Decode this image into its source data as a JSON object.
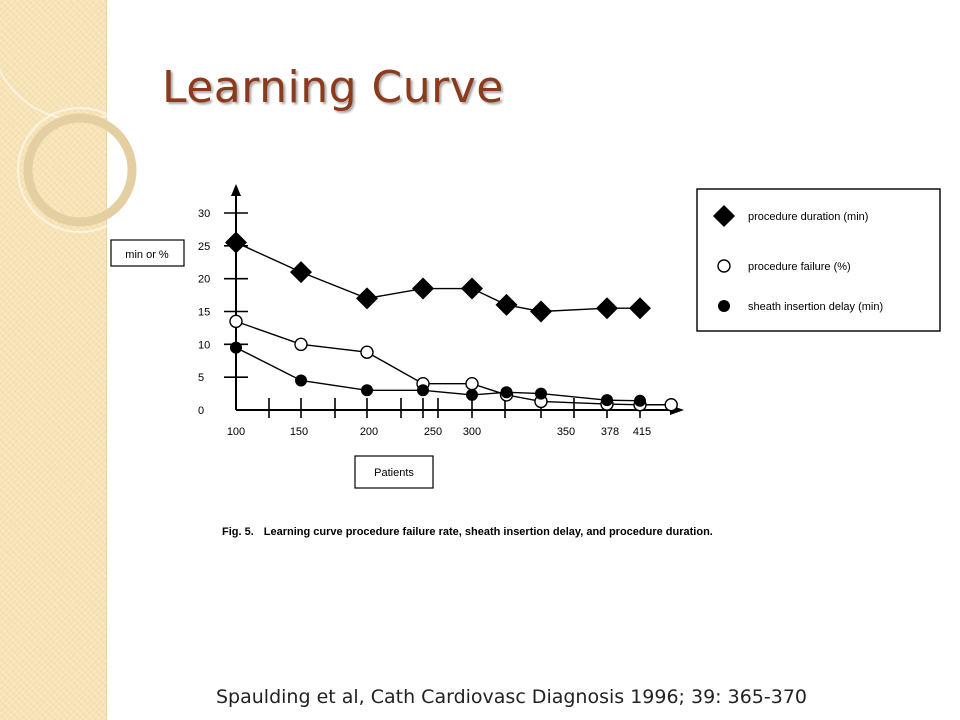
{
  "slide": {
    "title": "Learning Curve",
    "citation": "Spaulding et al, Cath Cardiovasc Diagnosis 1996; 39: 365-370"
  },
  "colors": {
    "title": "#8b3a1c",
    "band": "#f7e3b5",
    "ink": "#000000"
  },
  "chart_data": {
    "type": "line",
    "ylabel": "min or %",
    "xlabel": "Patients",
    "ylim": [
      0,
      30
    ],
    "y_ticks": [
      "0",
      "5",
      "10",
      "15",
      "20",
      "25",
      "30"
    ],
    "x_tick_labels": [
      "100",
      "150",
      "200",
      "250",
      "300",
      "350",
      "378",
      "415"
    ],
    "legend_position": "top-right",
    "caption_label": "Fig. 5.",
    "caption_text": "Learning curve procedure failure rate, sheath insertion delay, and procedure duration.",
    "series": [
      {
        "name": "procedure duration (min)",
        "marker": "diamond",
        "points": [
          [
            100,
            25.5
          ],
          [
            150,
            21
          ],
          [
            200,
            17
          ],
          [
            250,
            18.5
          ],
          [
            300,
            18.5
          ],
          [
            325,
            16
          ],
          [
            350,
            15
          ],
          [
            378,
            15.5
          ],
          [
            415,
            15.5
          ]
        ]
      },
      {
        "name": "procedure failure (%)",
        "marker": "open-circle",
        "points": [
          [
            100,
            13.5
          ],
          [
            150,
            10
          ],
          [
            200,
            8.8
          ],
          [
            250,
            4
          ],
          [
            300,
            4
          ],
          [
            325,
            2.3
          ],
          [
            350,
            1.3
          ],
          [
            378,
            0.9
          ],
          [
            415,
            0.8
          ],
          [
            450,
            0.8
          ]
        ]
      },
      {
        "name": "sheath insertion delay (min)",
        "marker": "filled-circle",
        "points": [
          [
            100,
            9.5
          ],
          [
            150,
            4.5
          ],
          [
            200,
            3
          ],
          [
            250,
            3
          ],
          [
            300,
            2.3
          ],
          [
            325,
            2.7
          ],
          [
            350,
            2.5
          ],
          [
            378,
            1.5
          ],
          [
            415,
            1.4
          ]
        ]
      }
    ]
  }
}
